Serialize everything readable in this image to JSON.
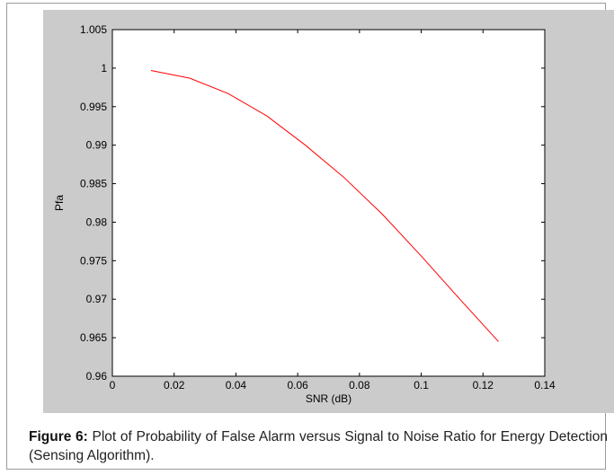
{
  "chart_data": {
    "type": "line",
    "title": "",
    "xlabel": "SNR (dB)",
    "ylabel": "Pfa",
    "xlim": [
      0,
      0.14
    ],
    "ylim": [
      0.96,
      1.005
    ],
    "xticks": [
      0,
      0.02,
      0.04,
      0.06,
      0.08,
      0.1,
      0.12,
      0.14
    ],
    "xtick_labels": [
      "0",
      "0.02",
      "0.04",
      "0.06",
      "0.08",
      "0.1",
      "0.12",
      "0.14"
    ],
    "yticks": [
      0.96,
      0.965,
      0.97,
      0.975,
      0.98,
      0.985,
      0.99,
      0.995,
      1,
      1.005
    ],
    "ytick_labels": [
      "0.96",
      "0.965",
      "0.97",
      "0.975",
      "0.98",
      "0.985",
      "0.99",
      "0.995",
      "1",
      "1.005"
    ],
    "grid": false,
    "series": [
      {
        "color": "#ff0000",
        "x": [
          0.0125,
          0.025,
          0.0375,
          0.05,
          0.0625,
          0.075,
          0.0875,
          0.1,
          0.1125,
          0.125
        ],
        "y": [
          0.9997,
          0.9987,
          0.9967,
          0.9938,
          0.99,
          0.9858,
          0.981,
          0.9756,
          0.97,
          0.9645
        ]
      }
    ]
  },
  "caption": {
    "label": "Figure 6:",
    "text": " Plot of Probability of False Alarm versus Signal to Noise Ratio for Energy Detection (Sensing Algorithm)."
  }
}
